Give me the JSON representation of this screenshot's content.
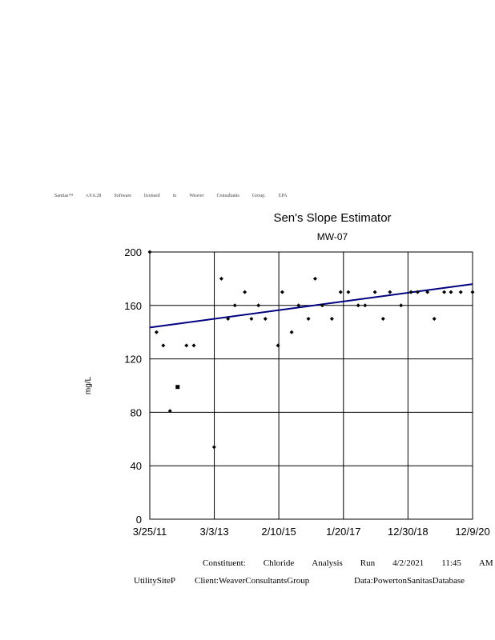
{
  "banner": [
    "Sanitas™",
    "v.9.6.28",
    "Software",
    "licensed",
    "to",
    "Weaver",
    "Consultants",
    "Group.",
    "EPA"
  ],
  "footer": {
    "line1": [
      "Constituent:",
      "Chloride",
      "Analysis",
      "Run",
      "4/2/2021",
      "11:45",
      "AM"
    ],
    "site": "UtilitySiteP",
    "client": "Client:WeaverConsultantsGroup",
    "data": "Data:PowertonSanitasDatabase"
  },
  "chart_data": {
    "type": "scatter",
    "title": "Sen's Slope Estimator",
    "subtitle": "MW-07",
    "xlabel": "",
    "ylabel": "mg/L",
    "ylim": [
      0,
      200
    ],
    "yticks": [
      0,
      40,
      80,
      120,
      160,
      200
    ],
    "xlim": [
      "2011-03-25",
      "2020-12-09"
    ],
    "xticks": [
      "2011-03-25",
      "2013-03-03",
      "2015-02-10",
      "2017-01-20",
      "2018-12-30",
      "2020-12-09"
    ],
    "xtick_labels": [
      "3/25/11",
      "3/3/13",
      "2/10/15",
      "1/20/17",
      "12/30/18",
      "12/9/20"
    ],
    "grid": true,
    "series": [
      {
        "marker": "diamond",
        "color": "#000000",
        "points": [
          [
            "2011-03-25",
            200
          ],
          [
            "2011-06-07",
            140
          ],
          [
            "2011-08-20",
            130
          ],
          [
            "2011-11-02",
            81
          ],
          [
            "2012-05-01",
            130
          ],
          [
            "2012-07-21",
            130
          ],
          [
            "2013-03-01",
            54
          ],
          [
            "2013-05-20",
            180
          ],
          [
            "2013-08-01",
            150
          ],
          [
            "2013-10-15",
            160
          ],
          [
            "2014-02-01",
            170
          ],
          [
            "2014-04-15",
            150
          ],
          [
            "2014-07-01",
            160
          ],
          [
            "2014-09-15",
            150
          ],
          [
            "2015-02-01",
            130
          ],
          [
            "2015-03-20",
            170
          ],
          [
            "2015-07-01",
            140
          ],
          [
            "2015-09-15",
            160
          ],
          [
            "2016-01-01",
            150
          ],
          [
            "2016-03-15",
            180
          ],
          [
            "2016-06-01",
            160
          ],
          [
            "2016-09-15",
            150
          ],
          [
            "2016-12-20",
            170
          ],
          [
            "2017-03-15",
            170
          ],
          [
            "2017-07-01",
            160
          ],
          [
            "2017-09-15",
            160
          ],
          [
            "2018-01-01",
            170
          ],
          [
            "2018-04-01",
            150
          ],
          [
            "2018-06-15",
            170
          ],
          [
            "2018-10-15",
            160
          ],
          [
            "2019-02-01",
            170
          ],
          [
            "2019-04-15",
            170
          ],
          [
            "2019-08-01",
            170
          ],
          [
            "2019-10-15",
            150
          ],
          [
            "2020-02-01",
            170
          ],
          [
            "2020-04-15",
            170
          ],
          [
            "2020-08-01",
            170
          ],
          [
            "2020-12-09",
            170
          ]
        ]
      },
      {
        "marker": "square",
        "color": "#000000",
        "points": [
          [
            "2012-01-25",
            99
          ]
        ]
      }
    ],
    "trend_line": {
      "color": "#000080",
      "points": [
        [
          "2011-03-25",
          143.5
        ],
        [
          "2020-12-09",
          176
        ]
      ]
    }
  }
}
